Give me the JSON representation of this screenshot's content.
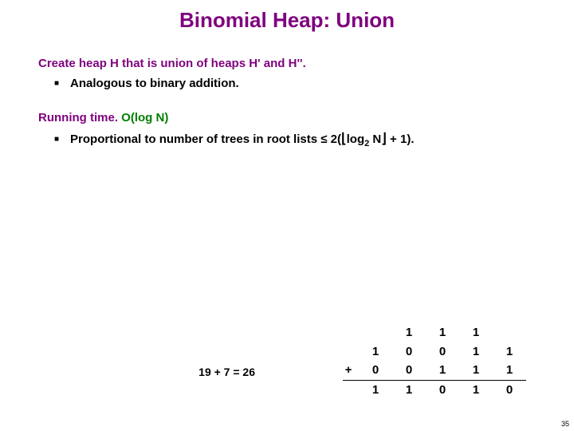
{
  "title": "Binomial Heap:  Union",
  "line1_prefix": "Create heap H that is union of heaps H' and H''.",
  "bullet1": "Analogous to binary addition.",
  "line2_black": "Running time.",
  "line2_green": "  O(log N)",
  "bullet2_prefix": "Proportional to number of trees in root lists ",
  "bullet2_le": "≤",
  "bullet2_2": "  2(",
  "bullet2_floor_l": "⌊",
  "bullet2_log": "log",
  "bullet2_sub": "2",
  "bullet2_n": " N",
  "bullet2_floor_r": "⌋",
  "bullet2_tail": " + 1).",
  "equation_label": "19 + 7 = 26",
  "table": {
    "carry": [
      "",
      "1",
      "1",
      "1",
      ""
    ],
    "row_a": [
      "1",
      "0",
      "0",
      "1",
      "1"
    ],
    "row_b": [
      "0",
      "0",
      "1",
      "1",
      "1"
    ],
    "result": [
      "1",
      "1",
      "0",
      "1",
      "0"
    ],
    "plus": "+"
  },
  "slide_number": "35",
  "colors": {
    "purple": "#7f007f",
    "green": "#007f00"
  }
}
